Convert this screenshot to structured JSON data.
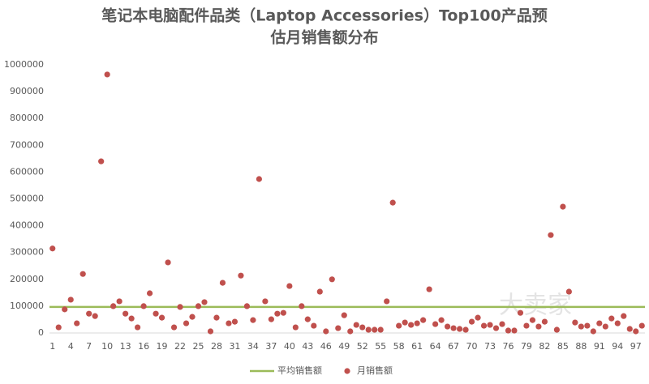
{
  "chart_data": {
    "type": "scatter",
    "title": "笔记本电脑配件品类（Laptop Accessories）Top100产品预",
    "subtitle": "估月销售额分布",
    "watermark": "大卖家",
    "categories": [
      1,
      null,
      null,
      4,
      null,
      null,
      7,
      null,
      null,
      10,
      null,
      null,
      13,
      null,
      null,
      16,
      null,
      null,
      19,
      null,
      null,
      22,
      null,
      null,
      25,
      null,
      null,
      28,
      null,
      null,
      31,
      null,
      null,
      34,
      null,
      null,
      37,
      null,
      null,
      40,
      null,
      null,
      43,
      null,
      null,
      46,
      null,
      null,
      49,
      null,
      null,
      52,
      null,
      null,
      55,
      null,
      null,
      58,
      null,
      null,
      61,
      null,
      null,
      64,
      null,
      null,
      67,
      null,
      null,
      70,
      null,
      null,
      73,
      null,
      null,
      76,
      null,
      null,
      79,
      null,
      null,
      82,
      null,
      null,
      85,
      null,
      null,
      88,
      null,
      null,
      91,
      null,
      null,
      94,
      null,
      null,
      97,
      null
    ],
    "series": [
      {
        "name": "月销售额",
        "color": "#c0504d",
        "values": [
          315000,
          21000,
          88000,
          124000,
          36000,
          220000,
          72000,
          63000,
          640000,
          964000,
          100000,
          118000,
          72000,
          54000,
          21000,
          100000,
          148000,
          72000,
          57000,
          263000,
          21000,
          97000,
          36000,
          60000,
          100000,
          115000,
          6000,
          57000,
          187000,
          36000,
          42000,
          214000,
          100000,
          48000,
          574000,
          118000,
          51000,
          72000,
          75000,
          175000,
          21000,
          100000,
          51000,
          27000,
          154000,
          6000,
          200000,
          18000,
          66000,
          6000,
          30000,
          21000,
          12000,
          12000,
          12000,
          118000,
          486000,
          27000,
          39000,
          30000,
          36000,
          48000,
          163000,
          33000,
          48000,
          24000,
          18000,
          15000,
          12000,
          42000,
          57000,
          27000,
          30000,
          18000,
          33000,
          9000,
          9000,
          75000,
          27000,
          48000,
          24000,
          42000,
          365000,
          12000,
          471000,
          154000,
          39000,
          24000,
          27000,
          6000,
          36000,
          24000,
          54000,
          36000,
          63000,
          15000,
          6000,
          27000
        ]
      }
    ],
    "average": {
      "name": "平均销售额",
      "color": "#9bbb59",
      "value": 97000
    },
    "ylim": [
      0,
      1000000
    ],
    "yticks": [
      0,
      100000,
      200000,
      300000,
      400000,
      500000,
      600000,
      700000,
      800000,
      900000,
      1000000
    ],
    "grid": false
  }
}
